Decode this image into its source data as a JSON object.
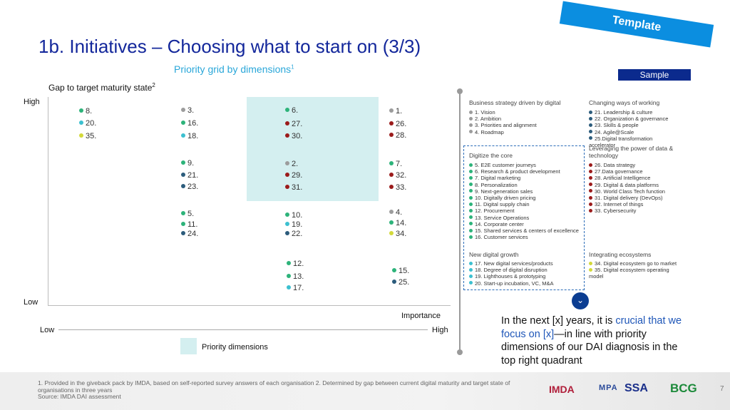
{
  "title": "1b. Initiatives – Choosing what to start on (3/3)",
  "subtitle": "Priority grid by dimensions",
  "subtitle_sup": "1",
  "template_label": "Template",
  "sample_label": "Sample",
  "chart": {
    "y_label": "Gap to target maturity state",
    "y_label_sup": "2",
    "y_high": "High",
    "y_low": "Low",
    "x_label": "Importance",
    "x_low": "Low",
    "x_high": "High",
    "priority_label": "Priority dimensions",
    "points": [
      {
        "label": "8.",
        "color": "#2db37a"
      },
      {
        "label": "20.",
        "color": "#3cc0d0"
      },
      {
        "label": "35.",
        "color": "#d3d93a"
      },
      {
        "label": "3.",
        "color": "#9c9c9c"
      },
      {
        "label": "16.",
        "color": "#2db37a"
      },
      {
        "label": "18.",
        "color": "#3cc0d0"
      },
      {
        "label": "6.",
        "color": "#2db37a"
      },
      {
        "label": "27.",
        "color": "#9b1b1b"
      },
      {
        "label": "30.",
        "color": "#9b1b1b"
      },
      {
        "label": "1.",
        "color": "#9c9c9c"
      },
      {
        "label": "26.",
        "color": "#9b1b1b"
      },
      {
        "label": "28.",
        "color": "#9b1b1b"
      },
      {
        "label": "9.",
        "color": "#2db37a"
      },
      {
        "label": "21.",
        "color": "#2c5c7c"
      },
      {
        "label": "23.",
        "color": "#2c5c7c"
      },
      {
        "label": "2.",
        "color": "#9c9c9c"
      },
      {
        "label": "29.",
        "color": "#9b1b1b"
      },
      {
        "label": "31.",
        "color": "#9b1b1b"
      },
      {
        "label": "7.",
        "color": "#2db37a"
      },
      {
        "label": "32.",
        "color": "#9b1b1b"
      },
      {
        "label": "33.",
        "color": "#9b1b1b"
      },
      {
        "label": "5.",
        "color": "#2db37a"
      },
      {
        "label": "11.",
        "color": "#2db37a"
      },
      {
        "label": "24.",
        "color": "#2c5c7c"
      },
      {
        "label": "10.",
        "color": "#2db37a"
      },
      {
        "label": "19.",
        "color": "#3cc0d0"
      },
      {
        "label": "22.",
        "color": "#2c5c7c"
      },
      {
        "label": "4.",
        "color": "#9c9c9c"
      },
      {
        "label": "14.",
        "color": "#2db37a"
      },
      {
        "label": "34.",
        "color": "#d3d93a"
      },
      {
        "label": "12.",
        "color": "#2db37a"
      },
      {
        "label": "13.",
        "color": "#2db37a"
      },
      {
        "label": "17.",
        "color": "#3cc0d0"
      },
      {
        "label": "15.",
        "color": "#2db37a"
      },
      {
        "label": "25.",
        "color": "#2c5c7c"
      }
    ]
  },
  "legend": {
    "business": {
      "title": "Business strategy driven by digital",
      "items": [
        "1. Vision",
        "2. Ambition",
        "3. Priorities and alignment",
        "4. Roadmap"
      ]
    },
    "ways": {
      "title": "Changing ways of working",
      "items": [
        "21. Leadership & culture",
        "22. Organization & governance",
        "23. Skills & people",
        "24. Agile@Scale",
        "25.Digital transformation accelerator"
      ]
    },
    "core": {
      "title": "Digitize the core",
      "items": [
        "5. E2E customer journeys",
        "6. Research & product development",
        "7. Digital marketing",
        "8. Personalization",
        "9. Next-generation sales",
        "10. Digitally driven pricing",
        "11. Digital supply chain",
        "12. Procurement",
        "13. Service Operations",
        "14. Corporate center",
        "15. Shared services & centers of excellence",
        "16. Customer services"
      ]
    },
    "data": {
      "title": "Leveraging the power of data & technology",
      "items": [
        "26. Data strategy",
        "27.Data governance",
        "28. Artificial Intelligence",
        "29. Digital & data platforms",
        "30. World Class Tech function",
        "31. Digital delivery (DevOps)",
        "32. Internet of things",
        "33. Cybersecurity"
      ]
    },
    "growth": {
      "title": "New digital growth",
      "items": [
        "17. New digital services/products",
        "18. Degree of digital disruption",
        "19. Lighthouses & prototyping",
        "20. Start-up incubation, VC, M&A"
      ]
    },
    "eco": {
      "title": "Integrating ecosystems",
      "items": [
        "34. Digital ecosystem go to market",
        "35. Digital ecosystem operating model"
      ]
    }
  },
  "callout": {
    "part1": "In the next [x] years, it is ",
    "highlight": "crucial that we focus on [x]",
    "part2": "—in line with priority dimensions of our DAI diagnosis in the top right quadrant"
  },
  "footnote": {
    "line1": "1. Provided in the giveback pack by IMDA, based on self-reported survey answers of each organisation  2. Determined by gap between current digital maturity and target state of organisations in three years",
    "line2": "Source: IMDA DAI assessment"
  },
  "page_number": "7",
  "logos": {
    "imda": "IMDA",
    "mpa": "MPA",
    "ssa": "SSA",
    "bcg": "BCG"
  }
}
